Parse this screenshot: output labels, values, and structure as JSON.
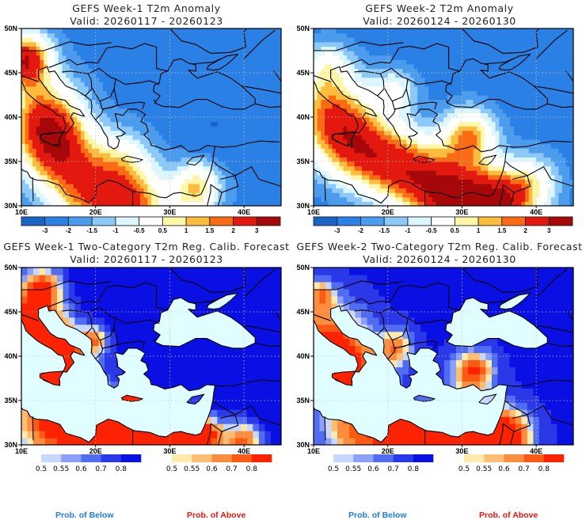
{
  "panels": [
    {
      "id": "w1-anom",
      "title": "GEFS Week-1 T2m Anomaly",
      "valid": "Valid: 20260117 - 20260123",
      "kind": "anomaly",
      "field": {
        "base": -2.2,
        "blobs": [
          {
            "lon": 10.5,
            "lat": 46.5,
            "amp": 5.0,
            "r": 3.5
          },
          {
            "lon": 13,
            "lat": 40,
            "amp": 3.8,
            "r": 5
          },
          {
            "lon": 15,
            "lat": 36,
            "amp": 3.6,
            "r": 5
          },
          {
            "lon": 20,
            "lat": 31,
            "amp": 3.8,
            "r": 5.5
          },
          {
            "lon": 26,
            "lat": 30,
            "amp": 2.8,
            "r": 4
          },
          {
            "lon": 33,
            "lat": 31,
            "amp": 2.2,
            "r": 3.5
          },
          {
            "lon": 24,
            "lat": 35,
            "amp": 1.8,
            "r": 4
          },
          {
            "lon": 34,
            "lat": 33,
            "amp": 1.6,
            "r": 3
          },
          {
            "lon": 36,
            "lat": 39,
            "amp": -0.8,
            "r": 4
          },
          {
            "lon": 32,
            "lat": 46,
            "amp": -0.3,
            "r": 5
          }
        ]
      }
    },
    {
      "id": "w2-anom",
      "title": "GEFS Week-2 T2m Anomaly",
      "valid": "Valid: 20260124 - 20260130",
      "kind": "anomaly",
      "field": {
        "base": -2.3,
        "blobs": [
          {
            "lon": 12,
            "lat": 41,
            "amp": 3.3,
            "r": 5.5
          },
          {
            "lon": 15,
            "lat": 37,
            "amp": 3.2,
            "r": 5
          },
          {
            "lon": 20,
            "lat": 35,
            "amp": 3.2,
            "r": 5
          },
          {
            "lon": 25,
            "lat": 33,
            "amp": 3.3,
            "r": 5
          },
          {
            "lon": 30,
            "lat": 30.5,
            "amp": 4.8,
            "r": 5
          },
          {
            "lon": 36,
            "lat": 30.5,
            "amp": 4.3,
            "r": 4.5
          },
          {
            "lon": 31,
            "lat": 38,
            "amp": 3.6,
            "r": 3.5
          },
          {
            "lon": 12,
            "lat": 46,
            "amp": 1.6,
            "r": 3
          },
          {
            "lon": 21,
            "lat": 43,
            "amp": 1.8,
            "r": 3
          },
          {
            "lon": 40,
            "lat": 33,
            "amp": 1.5,
            "r": 3.5
          }
        ]
      }
    },
    {
      "id": "w1-prob",
      "title": "GEFS Week-1 Two-Category T2m Reg. Calib. Forecast",
      "valid": "Valid: 20260117 - 20260123",
      "kind": "prob",
      "field": {
        "base": -0.95,
        "blobs": [
          {
            "lon": 11,
            "lat": 44,
            "amp": 2.0,
            "r": 4.5
          },
          {
            "lon": 15,
            "lat": 40,
            "amp": 2.0,
            "r": 4
          },
          {
            "lon": 15,
            "lat": 33,
            "amp": 2.0,
            "r": 6
          },
          {
            "lon": 23,
            "lat": 31,
            "amp": 2.0,
            "r": 5
          },
          {
            "lon": 30,
            "lat": 30.5,
            "amp": 2.0,
            "r": 4
          },
          {
            "lon": 35,
            "lat": 31,
            "amp": 1.7,
            "r": 2.5
          },
          {
            "lon": 40,
            "lat": 30.5,
            "amp": 1.5,
            "r": 2.5
          },
          {
            "lon": 20,
            "lat": 42,
            "amp": 1.1,
            "r": 1.8
          },
          {
            "lon": 24.5,
            "lat": 35.3,
            "amp": 2.0,
            "r": 1.2
          },
          {
            "lon": 13,
            "lat": 48,
            "amp": 1.3,
            "r": 2.5
          }
        ]
      }
    },
    {
      "id": "w2-prob",
      "title": "GEFS Week-2 Two-Category T2m Reg. Calib. Forecast",
      "valid": "Valid: 20260124 - 20260130",
      "kind": "prob",
      "field": {
        "base": -0.8,
        "blobs": [
          {
            "lon": 12,
            "lat": 42,
            "amp": 1.5,
            "r": 5
          },
          {
            "lon": 15,
            "lat": 38,
            "amp": 1.4,
            "r": 4
          },
          {
            "lon": 16,
            "lat": 32,
            "amp": 1.3,
            "r": 5
          },
          {
            "lon": 23,
            "lat": 30.5,
            "amp": 1.9,
            "r": 4.5
          },
          {
            "lon": 30,
            "lat": 30.5,
            "amp": 2.0,
            "r": 4.5
          },
          {
            "lon": 36,
            "lat": 31,
            "amp": 1.9,
            "r": 3.5
          },
          {
            "lon": 21,
            "lat": 41,
            "amp": 1.2,
            "r": 2.5
          },
          {
            "lon": 31.5,
            "lat": 38.3,
            "amp": 1.6,
            "r": 2.8
          },
          {
            "lon": 11,
            "lat": 47,
            "amp": 1.0,
            "r": 2
          }
        ]
      }
    }
  ],
  "map_extent": {
    "lon_min": 10,
    "lon_max": 45,
    "lat_min": 30,
    "lat_max": 50
  },
  "lon_ticks": [
    "10E",
    "20E",
    "30E",
    "40E"
  ],
  "lon_tick_values": [
    10,
    20,
    30,
    40
  ],
  "lat_ticks": [
    "30N",
    "35N",
    "40N",
    "45N",
    "50N"
  ],
  "lat_tick_values": [
    30,
    35,
    40,
    45,
    50
  ],
  "anomaly_colorbar": {
    "colors": [
      "#1a64c8",
      "#2a80e4",
      "#4c9cee",
      "#8cc8f8",
      "#dcf6fe",
      "#ffffff",
      "#fef6a8",
      "#fcbd3e",
      "#fb6a14",
      "#e3190f",
      "#a6080a"
    ],
    "labels": [
      "-3",
      "-2",
      "-1.5",
      "-1",
      "-0.5",
      "0.5",
      "1",
      "1.5",
      "2",
      "3"
    ],
    "bounds": [
      -3,
      -2,
      -1.5,
      -1,
      -0.5,
      0.5,
      1,
      1.5,
      2,
      3
    ]
  },
  "prob_below_colorbar": {
    "colors": [
      "#c8d8fc",
      "#8ca0f8",
      "#506cf0",
      "#2a38e8",
      "#0a10e4"
    ],
    "labels": [
      "0.5",
      "0.55",
      "0.6",
      "0.7",
      "0.8"
    ]
  },
  "prob_above_colorbar": {
    "colors": [
      "#feebac",
      "#fdbd72",
      "#fc8d3e",
      "#fb5a14",
      "#fd2202"
    ],
    "labels": [
      "0.5",
      "0.55",
      "0.6",
      "0.7",
      "0.8"
    ]
  },
  "colors": {
    "sea_prob": "#e0feff",
    "grid": "#c8c8c8"
  },
  "footer": {
    "below_labels": [
      "Prob. of Below",
      "Prob. of Below"
    ],
    "above_labels": [
      "Prob. of Above",
      "Prob. of Above"
    ],
    "below_color": "#1e7be0",
    "above_color": "#e8170f"
  }
}
